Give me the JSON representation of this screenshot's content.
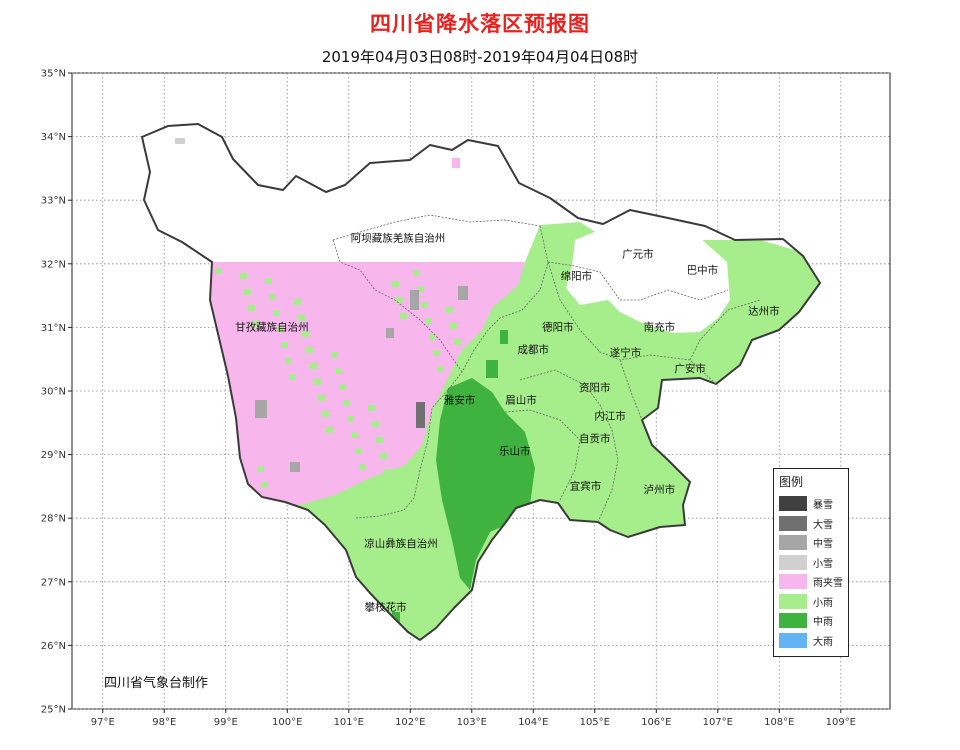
{
  "title": "四川省降水落区预报图",
  "subtitle": "2019年04月03日08时-2019年04月04日08时",
  "credit": "四川省气象台制作",
  "axes": {
    "lon_range": [
      96.5,
      109.8
    ],
    "lat_range": [
      25,
      35
    ],
    "lon_ticks": [
      "97°E",
      "98°E",
      "99°E",
      "100°E",
      "101°E",
      "102°E",
      "103°E",
      "104°E",
      "105°E",
      "106°E",
      "107°E",
      "108°E",
      "109°E"
    ],
    "lat_ticks": [
      "35°N",
      "34°N",
      "33°N",
      "32°N",
      "31°N",
      "30°N",
      "29°N",
      "28°N",
      "27°N",
      "26°N",
      "25°N"
    ],
    "grid": "dotted"
  },
  "regions": [
    {
      "name": "阿坝藏族羌族自治州",
      "lon": 101.8,
      "lat": 32.35
    },
    {
      "name": "甘孜藏族自治州",
      "lon": 99.75,
      "lat": 30.95
    },
    {
      "name": "凉山彝族自治州",
      "lon": 101.85,
      "lat": 27.55
    }
  ],
  "cities": [
    {
      "name": "广元市",
      "lon": 105.7,
      "lat": 32.1
    },
    {
      "name": "巴中市",
      "lon": 106.75,
      "lat": 31.85
    },
    {
      "name": "绵阳市",
      "lon": 104.7,
      "lat": 31.75
    },
    {
      "name": "达州市",
      "lon": 107.75,
      "lat": 31.2
    },
    {
      "name": "德阳市",
      "lon": 104.4,
      "lat": 30.95
    },
    {
      "name": "南充市",
      "lon": 106.05,
      "lat": 30.95
    },
    {
      "name": "成都市",
      "lon": 104.0,
      "lat": 30.6
    },
    {
      "name": "遂宁市",
      "lon": 105.5,
      "lat": 30.55
    },
    {
      "name": "广安市",
      "lon": 106.55,
      "lat": 30.3
    },
    {
      "name": "资阳市",
      "lon": 105.0,
      "lat": 30.0
    },
    {
      "name": "雅安市",
      "lon": 102.8,
      "lat": 29.8
    },
    {
      "name": "眉山市",
      "lon": 103.8,
      "lat": 29.8
    },
    {
      "name": "内江市",
      "lon": 105.25,
      "lat": 29.55
    },
    {
      "name": "自贡市",
      "lon": 105.0,
      "lat": 29.2
    },
    {
      "name": "乐山市",
      "lon": 103.7,
      "lat": 29.0
    },
    {
      "name": "宜宾市",
      "lon": 104.85,
      "lat": 28.45
    },
    {
      "name": "泸州市",
      "lon": 106.05,
      "lat": 28.4
    },
    {
      "name": "攀枝花市",
      "lon": 101.6,
      "lat": 26.55
    }
  ],
  "legend": {
    "title": "图例",
    "items": [
      {
        "label": "暴雪",
        "color": "#404040"
      },
      {
        "label": "大雪",
        "color": "#707070"
      },
      {
        "label": "中雪",
        "color": "#a6a6a6"
      },
      {
        "label": "小雪",
        "color": "#d0d0d0"
      },
      {
        "label": "雨夹雪",
        "color": "#f7b6ec"
      },
      {
        "label": "小雨",
        "color": "#a6ee8c"
      },
      {
        "label": "中雨",
        "color": "#3fb23f"
      },
      {
        "label": "大雨",
        "color": "#63b4f4"
      }
    ]
  }
}
